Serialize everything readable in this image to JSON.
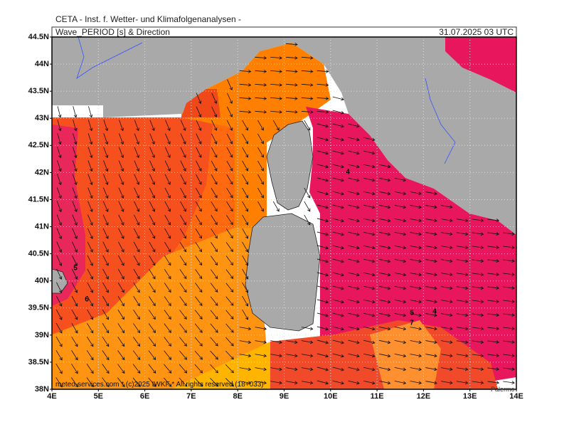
{
  "header": {
    "institute": "CETA - Inst. f. Wetter- und Klimafolgenanalysen -",
    "title": "Wave_PERIOD [s] & Direction",
    "datetime": "31.07.2025 03 UTC"
  },
  "map": {
    "lat_ticks": [
      {
        "value": 44.5,
        "label": "44.5N"
      },
      {
        "value": 44,
        "label": "44N"
      },
      {
        "value": 43.5,
        "label": "43.5N"
      },
      {
        "value": 43,
        "label": "43N"
      },
      {
        "value": 42.5,
        "label": "42.5N"
      },
      {
        "value": 42,
        "label": "42N"
      },
      {
        "value": 41.5,
        "label": "41.5N"
      },
      {
        "value": 41,
        "label": "41N"
      },
      {
        "value": 40.5,
        "label": "40.5N"
      },
      {
        "value": 40,
        "label": "40N"
      },
      {
        "value": 39.5,
        "label": "39.5N"
      },
      {
        "value": 39,
        "label": "39N"
      },
      {
        "value": 38.5,
        "label": "38.5N"
      },
      {
        "value": 38,
        "label": "38N"
      }
    ],
    "lon_ticks": [
      {
        "value": 4,
        "label": "4E"
      },
      {
        "value": 5,
        "label": "5E"
      },
      {
        "value": 6,
        "label": "6E"
      },
      {
        "value": 7,
        "label": "7E"
      },
      {
        "value": 8,
        "label": "8E"
      },
      {
        "value": 9,
        "label": "9E"
      },
      {
        "value": 10,
        "label": "10E"
      },
      {
        "value": 11,
        "label": "11E"
      },
      {
        "value": 12,
        "label": "12E"
      },
      {
        "value": 13,
        "label": "13E"
      },
      {
        "value": 14,
        "label": "14E"
      }
    ],
    "contour_labels": [
      "5",
      "6",
      "4",
      "5",
      "4",
      "7"
    ],
    "places": [
      "Palermo"
    ],
    "footer": "meteo-services.com * (c)2025 IWKF * All rights reserved (18+033)"
  }
}
